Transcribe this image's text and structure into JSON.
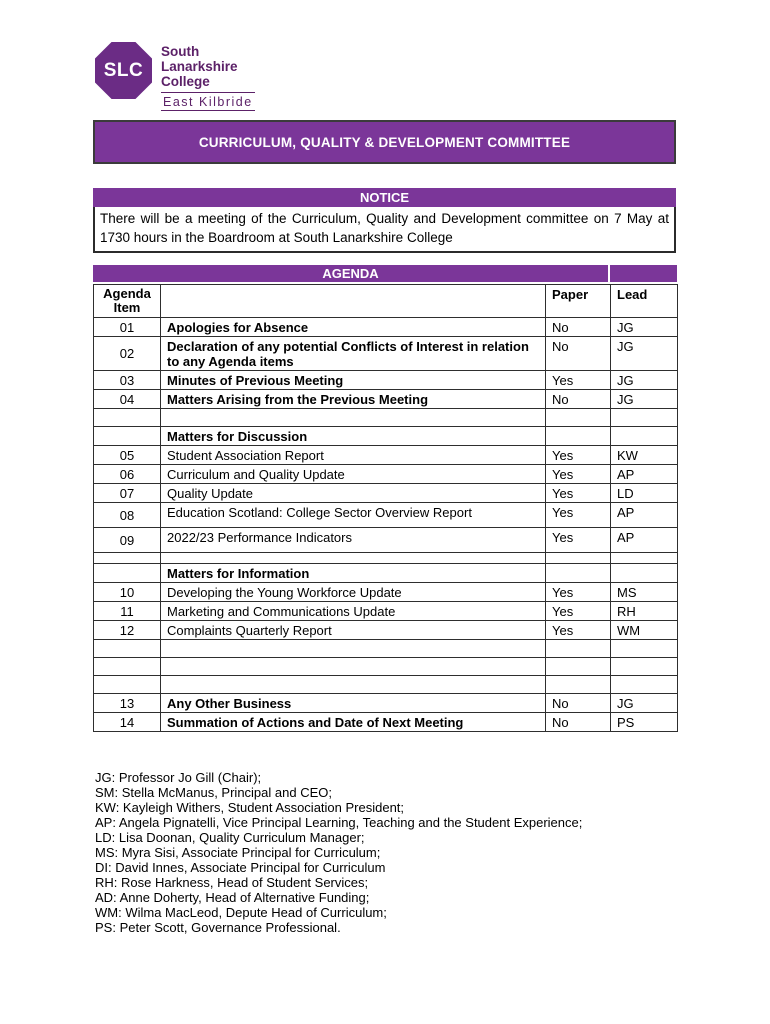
{
  "logo": {
    "acronym": "SLC",
    "name_lines": [
      "South",
      "Lanarkshire",
      "College"
    ],
    "campus": "East Kilbride"
  },
  "title_bar": {
    "text": "CURRICULUM, QUALITY & DEVELOPMENT COMMITTEE"
  },
  "notice": {
    "header": "NOTICE",
    "body": "There will be a meeting of the Curriculum, Quality and Development committee on 7 May at 1730 hours in the Boardroom at South Lanarkshire College"
  },
  "agenda": {
    "header": "AGENDA",
    "columns": {
      "item": "Agenda Item",
      "paper": "Paper",
      "lead": "Lead"
    },
    "rows": [
      {
        "type": "item",
        "num": "01",
        "title": "Apologies for Absence",
        "paper": "No",
        "lead": "JG",
        "bold": true
      },
      {
        "type": "item",
        "num": "02",
        "title": "Declaration of any potential Conflicts of Interest in relation to any Agenda items",
        "paper": "No",
        "lead": "JG",
        "bold": true,
        "multiline": true
      },
      {
        "type": "item",
        "num": "03",
        "title": "Minutes of Previous Meeting",
        "paper": "Yes",
        "lead": "JG",
        "bold": true
      },
      {
        "type": "item",
        "num": "04",
        "title": "Matters Arising from the Previous Meeting",
        "paper": "No",
        "lead": "JG",
        "bold": true
      },
      {
        "type": "empty"
      },
      {
        "type": "section",
        "title": "Matters for Discussion"
      },
      {
        "type": "item",
        "num": "05",
        "title": "Student Association Report",
        "paper": "Yes",
        "lead": "KW",
        "bold": false
      },
      {
        "type": "item",
        "num": "06",
        "title": "Curriculum and Quality Update",
        "paper": "Yes",
        "lead": "AP",
        "bold": false
      },
      {
        "type": "item",
        "num": "07",
        "title": "Quality Update",
        "paper": "Yes",
        "lead": "LD",
        "bold": false
      },
      {
        "type": "item",
        "num": "08",
        "title": "Education Scotland: College Sector Overview Report",
        "paper": "Yes",
        "lead": "AP",
        "bold": false,
        "tall": true
      },
      {
        "type": "item",
        "num": "09",
        "title": "2022/23 Performance Indicators",
        "paper": "Yes",
        "lead": "AP",
        "bold": false,
        "tall": true
      },
      {
        "type": "empty",
        "small": true
      },
      {
        "type": "section",
        "title": "Matters for Information"
      },
      {
        "type": "item",
        "num": "10",
        "title": "Developing the Young Workforce Update",
        "paper": "Yes",
        "lead": "MS",
        "bold": false
      },
      {
        "type": "item",
        "num": "11",
        "title": "Marketing and Communications Update",
        "paper": "Yes",
        "lead": "RH",
        "bold": false
      },
      {
        "type": "item",
        "num": "12",
        "title": "Complaints Quarterly Report",
        "paper": "Yes",
        "lead": "WM",
        "bold": false
      },
      {
        "type": "empty"
      },
      {
        "type": "empty"
      },
      {
        "type": "empty"
      },
      {
        "type": "item",
        "num": "13",
        "title": "Any Other Business",
        "paper": "No",
        "lead": "JG",
        "bold": true
      },
      {
        "type": "item",
        "num": "14",
        "title": "Summation of Actions and Date of Next Meeting",
        "paper": "No",
        "lead": "PS",
        "bold": true
      }
    ]
  },
  "legend": {
    "lines": [
      "JG: Professor Jo Gill (Chair);",
      "SM: Stella McManus, Principal and CEO;",
      "KW: Kayleigh Withers, Student Association President;",
      "AP: Angela Pignatelli, Vice Principal Learning, Teaching and the Student Experience;",
      "LD: Lisa Doonan, Quality Curriculum Manager;",
      "MS: Myra Sisi, Associate Principal for Curriculum;",
      "DI: David Innes, Associate Principal for Curriculum",
      "RH: Rose Harkness, Head of Student Services;",
      "AD: Anne Doherty, Head of Alternative Funding;",
      "WM: Wilma MacLeod, Depute Head of Curriculum;",
      "PS: Peter Scott, Governance Professional."
    ]
  },
  "colors": {
    "purple": "#7B3699",
    "logo_purple": "#6B2C85",
    "logo_text": "#5C2168",
    "title_border": "#3B3B3B",
    "cell_border": "#2E2E2E"
  }
}
